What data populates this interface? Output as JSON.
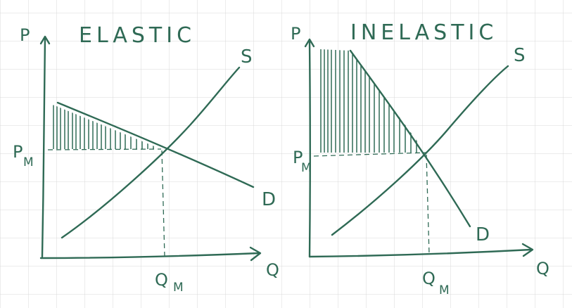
{
  "colors": {
    "ink": "#2f6a55",
    "grid": "#d9d9d9",
    "background": "#ffffff"
  },
  "panels": [
    {
      "title": "ELASTIC",
      "y_axis_label": "P",
      "x_axis_label": "Q",
      "price_label": "P",
      "price_subscript": "M",
      "quantity_label": "Q",
      "quantity_subscript": "M",
      "supply_label": "S",
      "demand_label": "D"
    },
    {
      "title": "INELASTIC",
      "y_axis_label": "P",
      "x_axis_label": "Q",
      "price_label": "P",
      "price_subscript": "M",
      "quantity_label": "Q",
      "quantity_subscript": "M",
      "supply_label": "S",
      "demand_label": "D"
    }
  ]
}
